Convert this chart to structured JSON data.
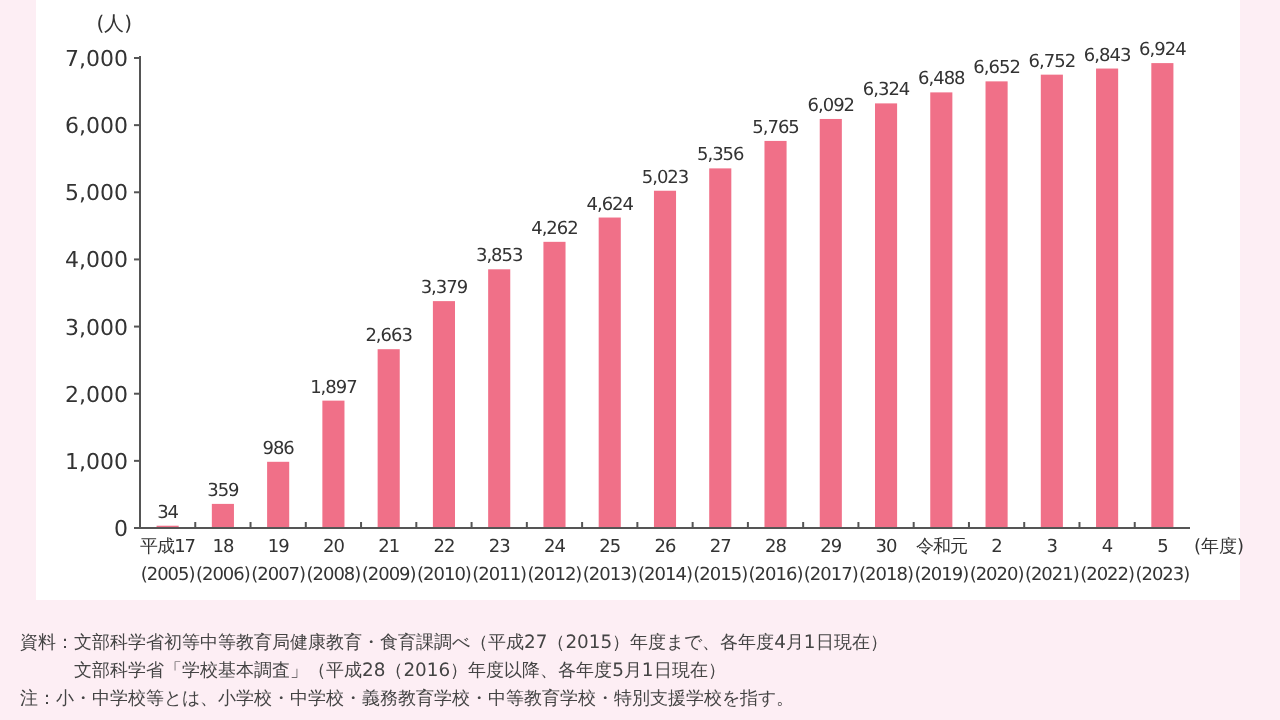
{
  "chart_data": {
    "type": "bar",
    "ylabel": "(人)",
    "xlabel": "(年度)",
    "categories": [
      "平成17\n(2005)",
      "18\n(2006)",
      "19\n(2007)",
      "20\n(2008)",
      "21\n(2009)",
      "22\n(2010)",
      "23\n(2011)",
      "24\n(2012)",
      "25\n(2013)",
      "26\n(2014)",
      "27\n(2015)",
      "28\n(2016)",
      "29\n(2017)",
      "30\n(2018)",
      "令和元\n(2019)",
      "2\n(2020)",
      "3\n(2021)",
      "4\n(2022)",
      "5\n(2023)"
    ],
    "values": [
      34,
      359,
      986,
      1897,
      2663,
      3379,
      3853,
      4262,
      4624,
      5023,
      5356,
      5765,
      6092,
      6324,
      6488,
      6652,
      6752,
      6843,
      6924
    ],
    "color": "#f07088",
    "ylim": [
      0,
      7000
    ],
    "yticks": [
      0,
      {
        "value": 1000,
        "label": "1,000"
      },
      {
        "value": 2000,
        "label": "2,000"
      },
      {
        "value": 3000,
        "label": "3,000"
      },
      {
        "value": 4000,
        "label": "4,000"
      },
      {
        "value": 5000,
        "label": "5,000"
      },
      {
        "value": 6000,
        "label": "6,000"
      },
      {
        "value": 7000,
        "label": "7,000"
      }
    ],
    "value_labels": [
      "34",
      "359",
      "986",
      "1,897",
      "2,663",
      "3,379",
      "3,853",
      "4,262",
      "4,624",
      "5,023",
      "5,356",
      "5,765",
      "6,092",
      "6,324",
      "6,488",
      "6,652",
      "6,752",
      "6,843",
      "6,924"
    ],
    "grid": false,
    "annotations": [
      "資料：文部科学省初等中等教育局健康教育・食育課調べ（平成27（2015）年度まで、各年度4月1日現在）",
      "　　　文部科学省「学校基本調査」（平成28（2016）年度以降、各年度5月1日現在）",
      "注：小・中学校等とは、小学校・中学校・義務教育学校・中等教育学校・特別支援学校を指す。"
    ]
  }
}
